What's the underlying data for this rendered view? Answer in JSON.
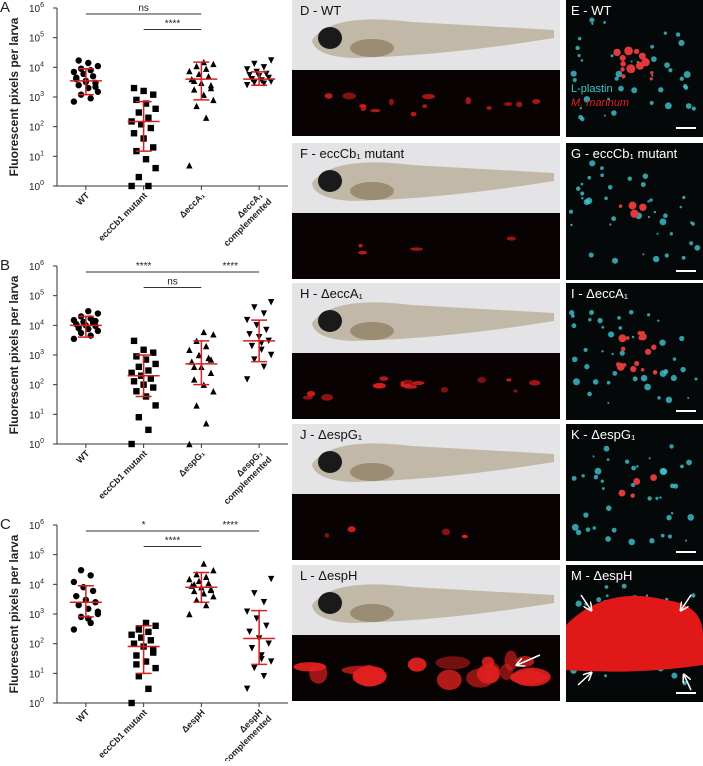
{
  "chart_data": [
    {
      "type": "dotplot",
      "panel": "A",
      "ylabel": "Fluorescent pixels per larva",
      "log": true,
      "ylim": [
        1,
        1000000
      ],
      "yticks": [
        {
          "value": 1,
          "label": "10",
          "exponent": "0"
        },
        {
          "value": 10,
          "label": "10",
          "exponent": "1"
        },
        {
          "value": 100,
          "label": "10",
          "exponent": "2"
        },
        {
          "value": 1000,
          "label": "10",
          "exponent": "3"
        },
        {
          "value": 10000,
          "label": "10",
          "exponent": "4"
        },
        {
          "value": 100000,
          "label": "10",
          "exponent": "5"
        },
        {
          "value": 1000000,
          "label": "10",
          "exponent": "6"
        }
      ],
      "categories": [
        [
          "WT"
        ],
        [
          "eccCb1 mutant"
        ],
        [
          "ΔeccA₁"
        ],
        [
          "ΔeccA₁",
          "complemented"
        ]
      ],
      "markers": [
        "circle",
        "square",
        "triangle-up",
        "triangle-down"
      ],
      "points": [
        [
          700,
          900,
          1200,
          1500,
          2000,
          2500,
          3000,
          3500,
          4000,
          5000,
          6000,
          7000,
          8000,
          9000,
          11000,
          14000,
          17000,
          2200,
          3200,
          4500
        ],
        [
          1,
          1,
          2,
          4,
          8,
          15,
          20,
          40,
          60,
          90,
          120,
          150,
          200,
          300,
          400,
          600,
          800,
          1200,
          1600,
          2000
        ],
        [
          5,
          200,
          500,
          800,
          1200,
          1800,
          2500,
          3000,
          4000,
          5000,
          6000,
          7500,
          9000,
          11000,
          13000,
          15000,
          3500,
          2000
        ],
        [
          2500,
          2800,
          3000,
          3300,
          3600,
          4000,
          4400,
          5000,
          5500,
          6000,
          7000,
          8500,
          10000,
          13000,
          17000
        ]
      ],
      "mean": [
        3500,
        150,
        4000,
        4000
      ],
      "low": [
        1200,
        15,
        800,
        2500
      ],
      "high": [
        9000,
        700,
        15000,
        7000
      ],
      "comparisons": [
        {
          "from": 0,
          "to": 2,
          "label": "ns",
          "y": 1000000
        },
        {
          "from": 1,
          "to": 2,
          "label": "****",
          "y": 300000
        }
      ]
    },
    {
      "type": "dotplot",
      "panel": "B",
      "ylabel": "Fluorescent pixels per larva",
      "log": true,
      "ylim": [
        1,
        1000000
      ],
      "yticks": [
        {
          "value": 1,
          "label": "10",
          "exponent": "0"
        },
        {
          "value": 10,
          "label": "10",
          "exponent": "1"
        },
        {
          "value": 100,
          "label": "10",
          "exponent": "2"
        },
        {
          "value": 1000,
          "label": "10",
          "exponent": "3"
        },
        {
          "value": 10000,
          "label": "10",
          "exponent": "4"
        },
        {
          "value": 100000,
          "label": "10",
          "exponent": "5"
        },
        {
          "value": 1000000,
          "label": "10",
          "exponent": "6"
        }
      ],
      "categories": [
        [
          "WT"
        ],
        [
          "eccCb1 mutant"
        ],
        [
          "ΔespG₁"
        ],
        [
          "ΔespG₁",
          "complemented"
        ]
      ],
      "markers": [
        "circle",
        "square",
        "triangle-up",
        "triangle-down"
      ],
      "points": [
        [
          3500,
          4500,
          5500,
          6500,
          7500,
          8500,
          9500,
          10000,
          11000,
          12000,
          13000,
          15000,
          17000,
          20000,
          25000,
          30000,
          8000,
          14000
        ],
        [
          1,
          3,
          8,
          20,
          40,
          60,
          80,
          100,
          130,
          160,
          200,
          250,
          300,
          400,
          500,
          700,
          900,
          1200,
          1500,
          3000
        ],
        [
          1,
          5,
          20,
          60,
          100,
          150,
          250,
          400,
          600,
          800,
          1000,
          1500,
          2000,
          3000,
          5000,
          6000,
          400,
          700
        ],
        [
          150,
          400,
          700,
          1000,
          1500,
          2000,
          3000,
          4000,
          5000,
          7000,
          10000,
          15000,
          25000,
          40000,
          60000,
          2500
        ]
      ],
      "mean": [
        10000,
        200,
        500,
        3000
      ],
      "low": [
        4000,
        40,
        100,
        600
      ],
      "high": [
        20000,
        1000,
        3000,
        15000
      ],
      "comparisons": [
        {
          "from": 0,
          "to": 2,
          "label": "****",
          "y": 1000000
        },
        {
          "from": 1,
          "to": 2,
          "label": "ns",
          "y": 300000
        },
        {
          "from": 2,
          "to": 3,
          "label": "****",
          "y": 1000000
        }
      ]
    },
    {
      "type": "dotplot",
      "panel": "C",
      "ylabel": "Fluorescent pixels per larva",
      "log": true,
      "ylim": [
        1,
        1000000
      ],
      "yticks": [
        {
          "value": 1,
          "label": "10",
          "exponent": "0"
        },
        {
          "value": 10,
          "label": "10",
          "exponent": "1"
        },
        {
          "value": 100,
          "label": "10",
          "exponent": "2"
        },
        {
          "value": 1000,
          "label": "10",
          "exponent": "3"
        },
        {
          "value": 10000,
          "label": "10",
          "exponent": "4"
        },
        {
          "value": 100000,
          "label": "10",
          "exponent": "5"
        },
        {
          "value": 1000000,
          "label": "10",
          "exponent": "6"
        }
      ],
      "categories": [
        [
          "WT"
        ],
        [
          "eccCb1 mutant"
        ],
        [
          "ΔespH"
        ],
        [
          "ΔespH",
          "complemented"
        ]
      ],
      "markers": [
        "circle",
        "square",
        "triangle-up",
        "triangle-down"
      ],
      "points": [
        [
          300,
          500,
          800,
          1000,
          1500,
          2000,
          2500,
          3000,
          4000,
          6000,
          8000,
          12000,
          20000,
          30000,
          1200,
          700
        ],
        [
          1,
          3,
          8,
          15,
          25,
          40,
          60,
          80,
          100,
          130,
          160,
          200,
          250,
          300,
          400,
          500,
          20,
          50
        ],
        [
          1000,
          2000,
          3000,
          4000,
          5000,
          6000,
          7000,
          8000,
          9000,
          11000,
          13000,
          15000,
          18000,
          22000,
          30000,
          50000,
          10000,
          6500
        ],
        [
          3,
          8,
          15,
          25,
          40,
          70,
          100,
          150,
          250,
          400,
          700,
          1200,
          2500,
          5000,
          15000,
          30
        ]
      ],
      "mean": [
        2500,
        80,
        8000,
        150
      ],
      "low": [
        800,
        10,
        2500,
        20
      ],
      "high": [
        9000,
        400,
        25000,
        1300
      ],
      "comparisons": [
        {
          "from": 0,
          "to": 2,
          "label": "*",
          "y": 1000000
        },
        {
          "from": 1,
          "to": 2,
          "label": "****",
          "y": 300000
        },
        {
          "from": 2,
          "to": 3,
          "label": "****",
          "y": 1000000
        }
      ]
    }
  ],
  "images": {
    "rows": [
      {
        "left": "D - WT",
        "right": "E - WT"
      },
      {
        "left": "F - eccCb₁ mutant",
        "right": "G - eccCb₁ mutant"
      },
      {
        "left": "H - ΔeccA₁",
        "right": "I - ΔeccA₁"
      },
      {
        "left": "J - ΔespG₁",
        "right": "K - ΔespG₁"
      },
      {
        "left": "L - ΔespH",
        "right": "M - ΔespH"
      }
    ],
    "legend": [
      "L-plastin",
      "M. marinum"
    ]
  }
}
